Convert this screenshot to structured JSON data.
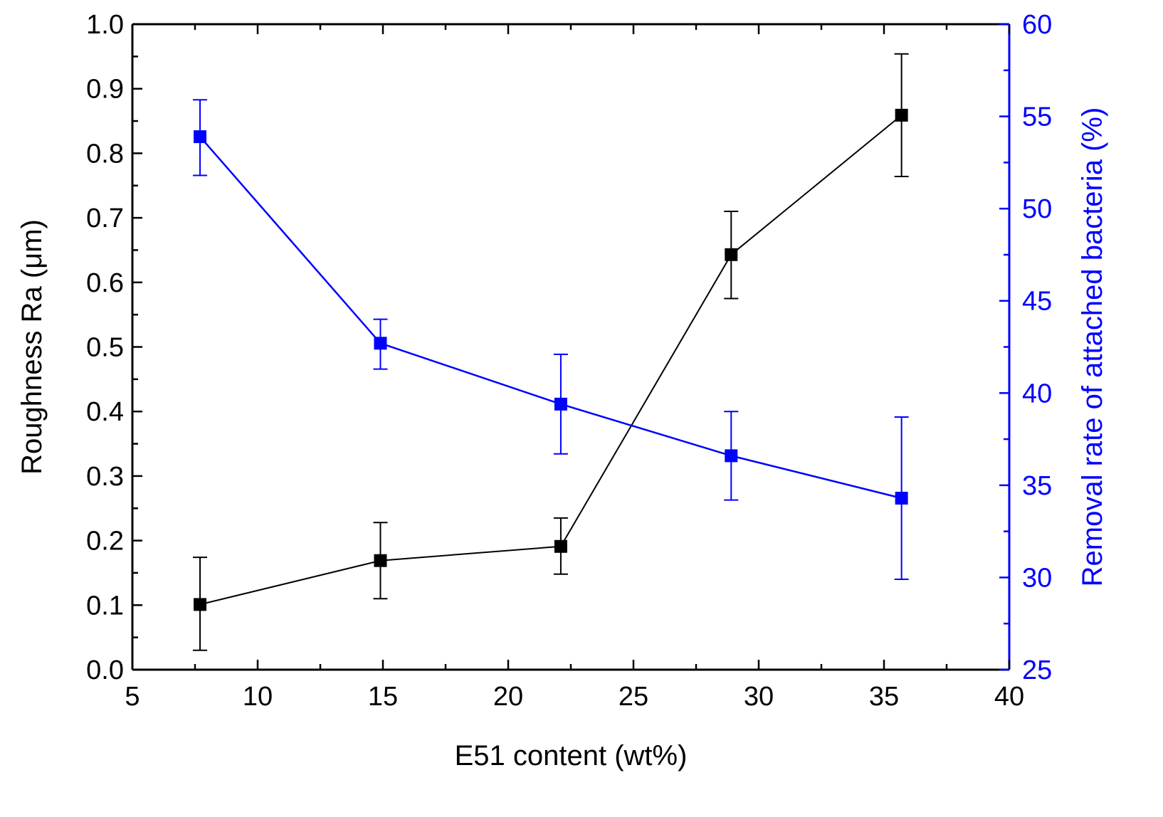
{
  "chart_data": {
    "type": "line",
    "title": "",
    "xlabel": "E51 content (wt%)",
    "ylabel_left": "Roughness Ra (μm)",
    "ylabel_right": "Removal rate of attached bacteria (%)",
    "xlim": [
      5,
      40
    ],
    "ylim_left": [
      0.0,
      1.0
    ],
    "ylim_right": [
      25,
      60
    ],
    "x_ticks": [
      "5",
      "10",
      "15",
      "20",
      "25",
      "30",
      "35",
      "40"
    ],
    "y_left_ticks": [
      "0.0",
      "0.1",
      "0.2",
      "0.3",
      "0.4",
      "0.5",
      "0.6",
      "0.7",
      "0.8",
      "0.9",
      "1.0"
    ],
    "y_right_ticks": [
      "25",
      "30",
      "35",
      "40",
      "45",
      "50",
      "55",
      "60"
    ],
    "grid": false,
    "legend": "none",
    "series": [
      {
        "name": "Roughness Ra",
        "axis": "left",
        "color": "#000000",
        "marker": "square",
        "x": [
          7.7,
          14.9,
          22.1,
          28.9,
          35.7
        ],
        "y": [
          0.101,
          0.169,
          0.191,
          0.643,
          0.859
        ],
        "err_low": [
          0.071,
          0.059,
          0.043,
          0.068,
          0.095
        ],
        "err_high": [
          0.073,
          0.059,
          0.044,
          0.067,
          0.095
        ]
      },
      {
        "name": "Removal rate of attached bacteria",
        "axis": "right",
        "color": "#0000ff",
        "marker": "square",
        "x": [
          7.7,
          14.9,
          22.1,
          28.9,
          35.7
        ],
        "y": [
          53.9,
          42.7,
          39.4,
          36.6,
          34.3
        ],
        "err_low": [
          2.1,
          1.4,
          2.7,
          2.4,
          4.4
        ],
        "err_high": [
          2.0,
          1.3,
          2.7,
          2.4,
          4.4
        ]
      }
    ]
  }
}
